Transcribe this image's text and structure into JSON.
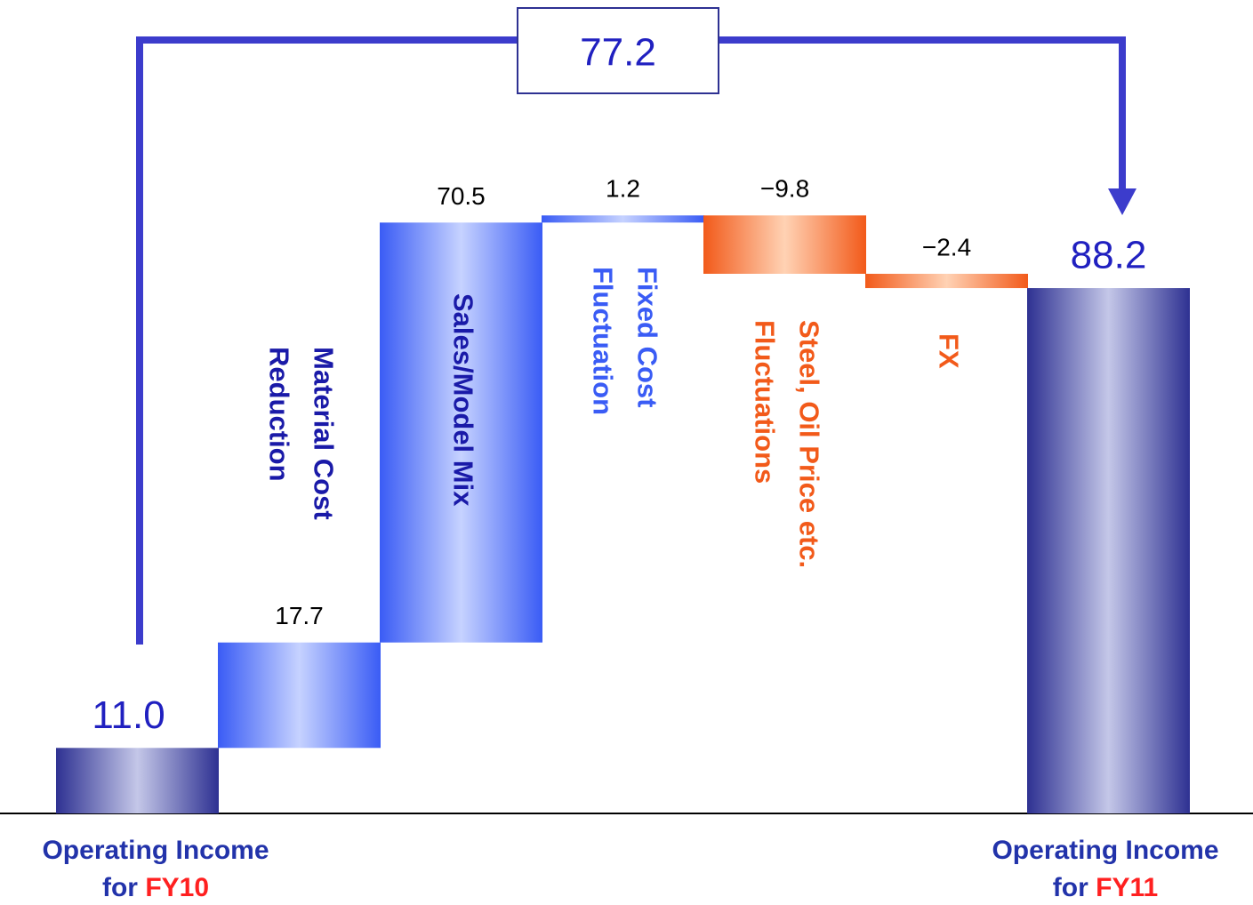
{
  "chart_data": {
    "type": "waterfall",
    "categories": [
      [
        "Operating Income",
        "for",
        "FY10"
      ],
      [
        "Material Cost",
        "Reduction"
      ],
      [
        "Sales/Model Mix"
      ],
      [
        "Fixed Cost",
        "Fluctuation"
      ],
      [
        "Steel, Oil Price etc.",
        "Fluctuations"
      ],
      [
        "FX"
      ],
      [
        "Operating Income",
        "for",
        "FY11"
      ]
    ],
    "values": [
      11.0,
      17.7,
      70.5,
      1.2,
      -9.8,
      -2.4,
      88.2
    ],
    "value_labels": [
      "11.0",
      "17.7",
      "70.5",
      "1.2",
      "−9.8",
      "−2.4",
      "88.2"
    ],
    "total_change": 77.2,
    "colors": {
      "total": "#2e3192",
      "increase": "#3a5cf5",
      "decrease": "#f25a1a",
      "highlight": "#ff2020"
    }
  }
}
